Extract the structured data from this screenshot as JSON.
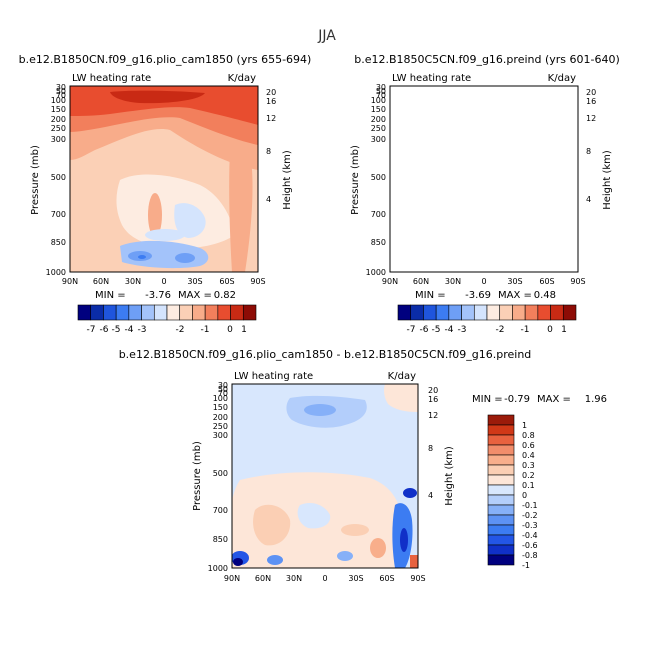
{
  "figure": {
    "season_title": "JJA"
  },
  "colors": {
    "full_scale": [
      "#00007f",
      "#0a2ca8",
      "#1f55dd",
      "#3c7cf2",
      "#6e9ff6",
      "#a3c3fa",
      "#d4e4fd",
      "#fdece1",
      "#fbd0b6",
      "#f8ac8a",
      "#f27f5c",
      "#e84d2f",
      "#c92a14",
      "#8d0b05"
    ],
    "diff_scale": [
      "#00007f",
      "#1030c8",
      "#2356e6",
      "#3c7cf2",
      "#5d92f4",
      "#86b0f8",
      "#b3cefb",
      "#d8e7fd",
      "#fde6d8",
      "#fbcfb4",
      "#f8ae8b",
      "#f18d6b",
      "#e8623f",
      "#d03817",
      "#9b1b0a"
    ]
  },
  "chart_data": [
    {
      "type": "heatmap",
      "name": "panel-pliocene",
      "title": "b.e12.B1850CN.f09_g16.plio_cam1850 (yrs 655-694)",
      "variable_label": "LW heating rate",
      "units_label": "K/day",
      "xlabel": "",
      "ylabel": "Pressure (mb)",
      "y2label": "Height (km)",
      "x_ticks": [
        "90N",
        "60N",
        "30N",
        "0",
        "30S",
        "60S",
        "90S"
      ],
      "y_ticks": [
        "30",
        "50",
        "70",
        "100",
        "150",
        "200",
        "250",
        "300",
        "500",
        "700",
        "850",
        "1000"
      ],
      "y2_ticks": [
        "20",
        "16",
        "12",
        "8",
        "4"
      ],
      "stats_min_label": "MIN =",
      "stats_min": "-3.76",
      "stats_max_label": "MAX =",
      "stats_max": "0.82",
      "colorbar_labels": [
        "-7",
        "-6",
        "-5",
        "-4",
        "-3",
        "-2",
        "-1",
        "0",
        "1"
      ],
      "colorbar_levels": [
        -7,
        -6,
        -5,
        -4,
        -3,
        -2.5,
        -2,
        -1.5,
        -1,
        -0.5,
        0,
        0.5,
        1
      ]
    },
    {
      "type": "heatmap",
      "name": "panel-preindustrial",
      "title": "b.e12.B1850C5CN.f09_g16.preind (yrs 601-640)",
      "variable_label": "LW heating rate",
      "units_label": "K/day",
      "xlabel": "",
      "ylabel": "Pressure (mb)",
      "y2label": "Height (km)",
      "x_ticks": [
        "90N",
        "60N",
        "30N",
        "0",
        "30S",
        "60S",
        "90S"
      ],
      "y_ticks": [
        "30",
        "50",
        "70",
        "100",
        "150",
        "200",
        "250",
        "300",
        "500",
        "700",
        "850",
        "1000"
      ],
      "y2_ticks": [
        "20",
        "16",
        "12",
        "8",
        "4"
      ],
      "stats_min_label": "MIN =",
      "stats_min": "-3.69",
      "stats_max_label": "MAX =",
      "stats_max": "0.48",
      "colorbar_labels": [
        "-7",
        "-6",
        "-5",
        "-4",
        "-3",
        "-2",
        "-1",
        "0",
        "1"
      ],
      "colorbar_levels": [
        -7,
        -6,
        -5,
        -4,
        -3,
        -2.5,
        -2,
        -1.5,
        -1,
        -0.5,
        0,
        0.5,
        1
      ]
    },
    {
      "type": "heatmap",
      "name": "panel-difference",
      "title": "b.e12.B1850CN.f09_g16.plio_cam1850 - b.e12.B1850C5CN.f09_g16.preind",
      "variable_label": "LW heating rate",
      "units_label": "K/day",
      "xlabel": "",
      "ylabel": "Pressure (mb)",
      "y2label": "Height (km)",
      "x_ticks": [
        "90N",
        "60N",
        "30N",
        "0",
        "30S",
        "60S",
        "90S"
      ],
      "y_ticks": [
        "30",
        "50",
        "70",
        "100",
        "150",
        "200",
        "250",
        "300",
        "500",
        "700",
        "850",
        "1000"
      ],
      "y2_ticks": [
        "20",
        "16",
        "12",
        "8",
        "4"
      ],
      "stats_min_label": "MIN =",
      "stats_min": "-0.79",
      "stats_max_label": "MAX =",
      "stats_max": "1.96",
      "colorbar_labels": [
        "1",
        "0.8",
        "0.6",
        "0.4",
        "0.3",
        "0.2",
        "0.1",
        "0",
        "-0.1",
        "-0.2",
        "-0.3",
        "-0.4",
        "-0.6",
        "-0.8",
        "-1"
      ],
      "colorbar_levels": [
        1,
        0.8,
        0.6,
        0.4,
        0.3,
        0.2,
        0.1,
        0,
        -0.1,
        -0.2,
        -0.3,
        -0.4,
        -0.6,
        -0.8,
        -1
      ]
    }
  ]
}
